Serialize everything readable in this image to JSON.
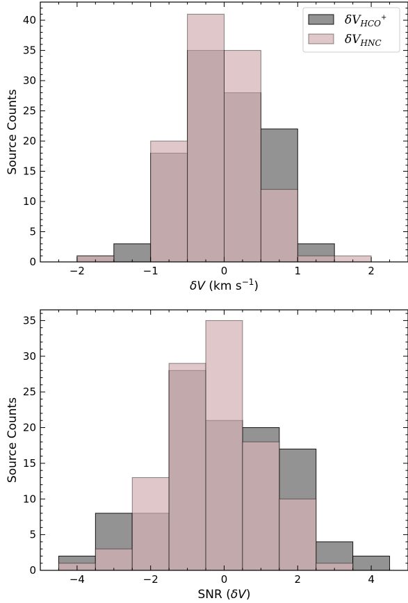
{
  "chart_data": [
    {
      "type": "bar",
      "xlabel": "δV (km s⁻¹)",
      "xlabel_parts": {
        "italic": "δV",
        "rest": " (km s",
        "sup": "−1",
        "close": ")"
      },
      "ylabel": "Source Counts",
      "xlim": [
        -2.5,
        2.5
      ],
      "ylim": [
        0,
        43
      ],
      "xticks": [
        -2,
        -1,
        0,
        1,
        2
      ],
      "yticks": [
        0,
        5,
        10,
        15,
        20,
        25,
        30,
        35,
        40
      ],
      "legend": "top-right",
      "grid": false,
      "bin_edges": [
        -2,
        -1.5,
        -1,
        -0.5,
        0,
        0.5,
        1,
        1.5,
        2
      ],
      "series": [
        {
          "name": "δV_HCO+",
          "label_main": "δV",
          "label_sub": "HCO",
          "label_sup": "+",
          "color": "#808080",
          "values": [
            1,
            3,
            18,
            35,
            28,
            22,
            3,
            0
          ]
        },
        {
          "name": "δV_HNC",
          "label_main": "δV",
          "label_sub": "HNC",
          "label_sup": "",
          "color": "#d4b3b5",
          "values": [
            1,
            0,
            20,
            41,
            35,
            12,
            1,
            1
          ]
        }
      ]
    },
    {
      "type": "bar",
      "xlabel": "SNR (δV)",
      "xlabel_parts": {
        "pre": "SNR (",
        "italic": "δV",
        "close": ")"
      },
      "ylabel": "Source Counts",
      "xlim": [
        -5,
        5
      ],
      "ylim": [
        0,
        36.5
      ],
      "xticks": [
        -4,
        -2,
        0,
        2,
        4
      ],
      "yticks": [
        0,
        5,
        10,
        15,
        20,
        25,
        30,
        35
      ],
      "grid": false,
      "bin_edges": [
        -4.5,
        -3.5,
        -2.5,
        -1.5,
        -0.5,
        0.5,
        1.5,
        2.5,
        3.5,
        4.5
      ],
      "series": [
        {
          "name": "δV_HCO+",
          "color": "#808080",
          "values": [
            2,
            8,
            8,
            28,
            21,
            20,
            17,
            4,
            2
          ]
        },
        {
          "name": "δV_HNC",
          "color": "#d4b3b5",
          "values": [
            1,
            3,
            13,
            29,
            35,
            18,
            10,
            1,
            0
          ]
        }
      ]
    }
  ]
}
